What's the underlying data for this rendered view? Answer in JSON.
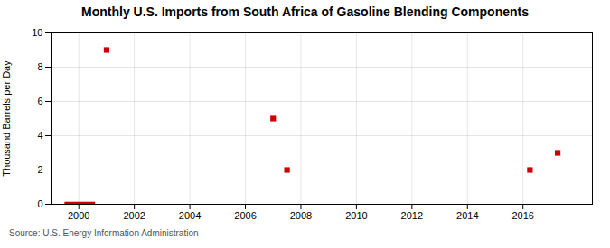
{
  "chart_data": {
    "type": "scatter",
    "title": "Monthly U.S. Imports from South Africa of Gasoline Blending Components",
    "ylabel": "Thousand Barrels per Day",
    "source": "Source: U.S. Energy Information Administration",
    "series": [
      {
        "type": "scatter",
        "marker": "square",
        "color": "#cc0000",
        "x": [
          2001.0,
          2007.0,
          2007.5,
          2016.25,
          2017.25
        ],
        "values": [
          9.0,
          5.0,
          2.0,
          2.0,
          3.0
        ]
      },
      {
        "type": "bar",
        "color": "#cc0000",
        "x_start": [
          1999.5
        ],
        "x_end": [
          2000.6
        ],
        "values": [
          0.12
        ]
      }
    ],
    "xlim": [
      1999.0,
      2018.5
    ],
    "ylim": [
      0,
      10
    ],
    "xticks": [
      2000,
      2002,
      2004,
      2006,
      2008,
      2010,
      2012,
      2014,
      2016
    ],
    "yticks": [
      0,
      2,
      4,
      6,
      8,
      10
    ],
    "grid": true
  }
}
